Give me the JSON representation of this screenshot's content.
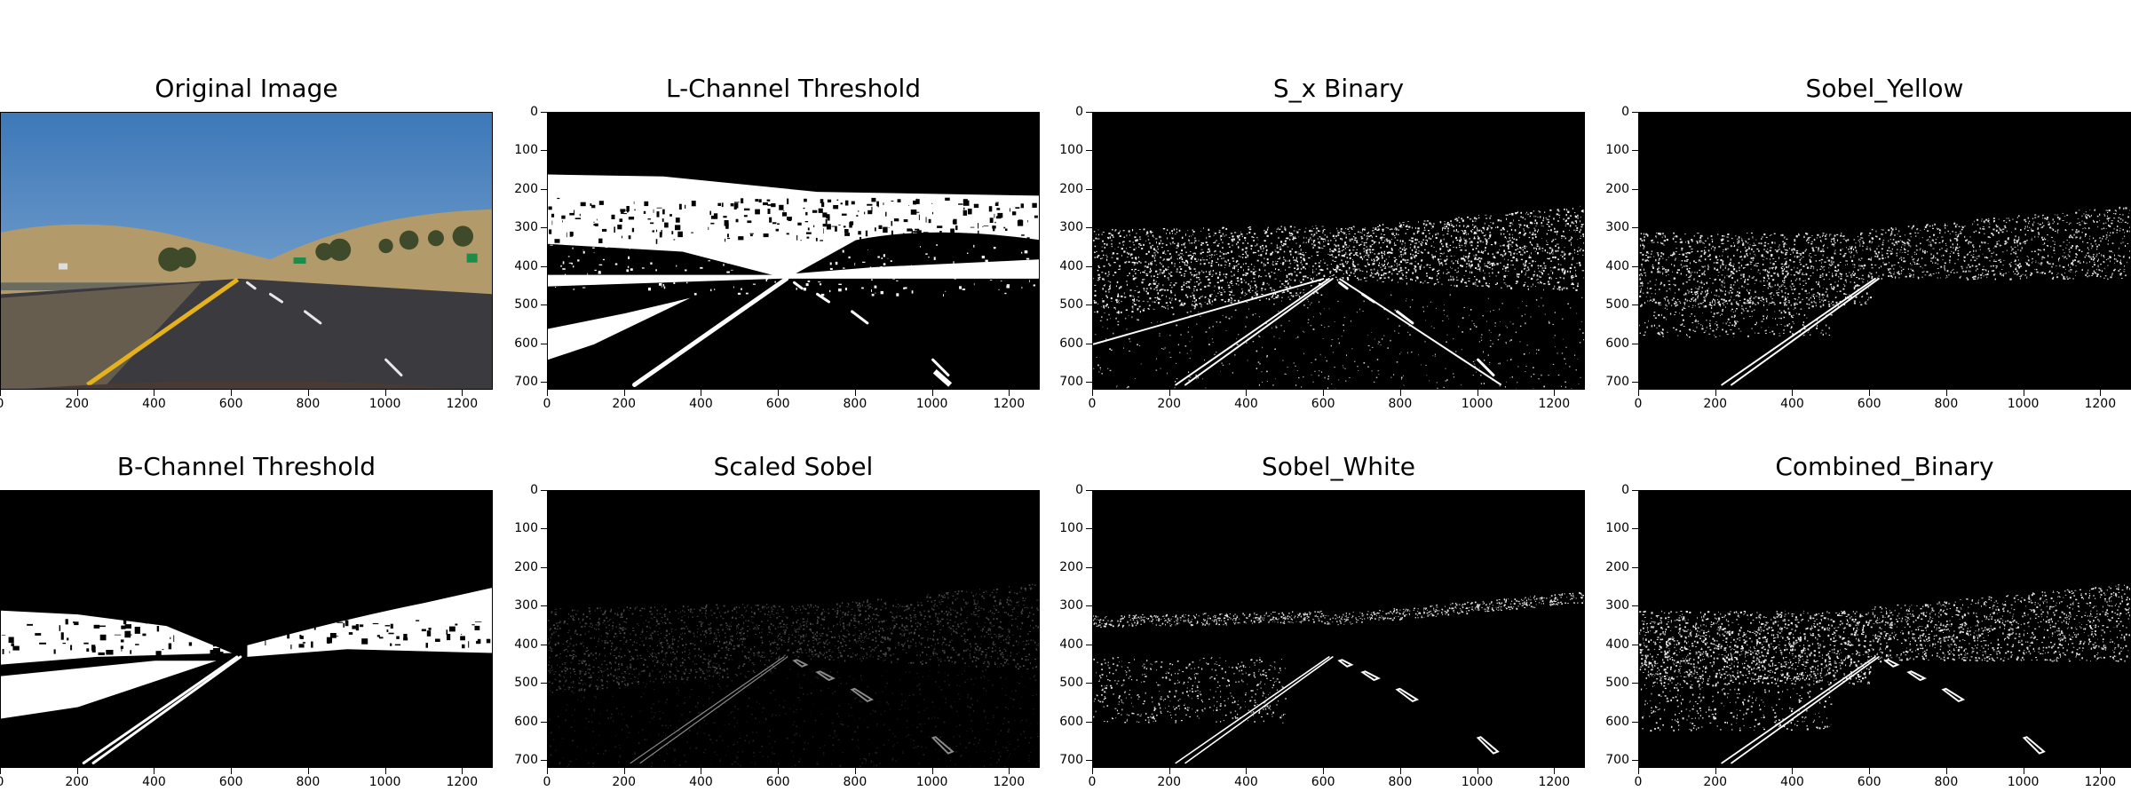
{
  "figure": {
    "panels": [
      {
        "id": "original",
        "title": "Original Image",
        "kind": "color-photo",
        "show_y_ticks": false
      },
      {
        "id": "l_channel",
        "title": "L-Channel Threshold",
        "kind": "l-threshold",
        "show_y_ticks": true
      },
      {
        "id": "sx_binary",
        "title": "S_x Binary",
        "kind": "sx-binary",
        "show_y_ticks": true
      },
      {
        "id": "sobel_yellow",
        "title": "Sobel_Yellow",
        "kind": "sobel-yellow",
        "show_y_ticks": true
      },
      {
        "id": "b_channel",
        "title": "B-Channel Threshold",
        "kind": "b-threshold",
        "show_y_ticks": false
      },
      {
        "id": "scaled_sobel",
        "title": "Scaled Sobel",
        "kind": "scaled-sobel",
        "show_y_ticks": true
      },
      {
        "id": "sobel_white",
        "title": "Sobel_White",
        "kind": "sobel-white",
        "show_y_ticks": true
      },
      {
        "id": "combined",
        "title": "Combined_Binary",
        "kind": "combined",
        "show_y_ticks": true
      }
    ],
    "x_ticks": [
      "0",
      "200",
      "400",
      "600",
      "800",
      "1000",
      "1200"
    ],
    "y_ticks": [
      "0",
      "100",
      "200",
      "300",
      "400",
      "500",
      "600",
      "700"
    ],
    "image_size": {
      "width": 1280,
      "height": 720
    }
  }
}
